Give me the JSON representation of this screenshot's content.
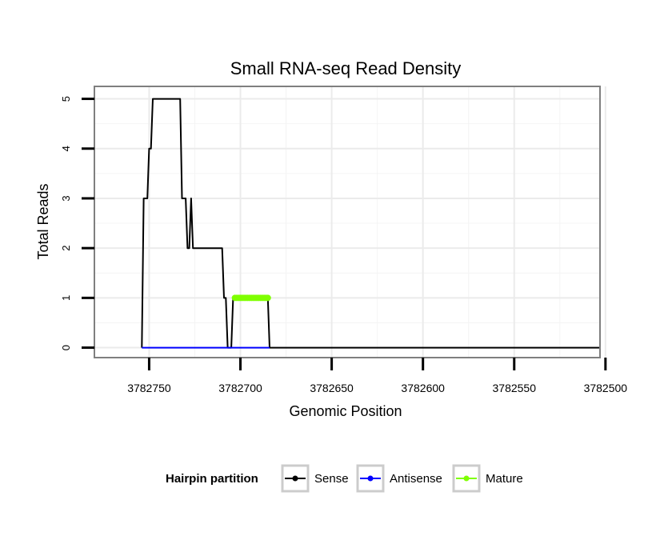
{
  "chart_data": {
    "type": "line",
    "title": "Small RNA-seq Read Density",
    "xlabel": "Genomic Position",
    "ylabel": "Total Reads",
    "x_reversed": true,
    "xlim": [
      3782503,
      3782780
    ],
    "ylim": [
      -0.2,
      5.25
    ],
    "x_ticks": [
      3782750,
      3782700,
      3782650,
      3782600,
      3782550,
      3782500
    ],
    "x_tick_labels": [
      "3782750",
      "3782700",
      "3782650",
      "3782600",
      "3782550",
      "3782500"
    ],
    "y_ticks": [
      0,
      1,
      2,
      3,
      4,
      5
    ],
    "y_tick_labels": [
      "0",
      "1",
      "2",
      "3",
      "4",
      "5"
    ],
    "grid": true,
    "legend": {
      "title": "Hairpin partition",
      "position": "bottom",
      "entries": [
        "Sense",
        "Antisense",
        "Mature"
      ]
    },
    "series": [
      {
        "name": "Sense",
        "color": "#000000",
        "x": [
          3782754,
          3782753,
          3782751,
          3782750,
          3782749,
          3782748,
          3782747,
          3782733,
          3782732,
          3782731,
          3782730,
          3782729,
          3782728,
          3782727,
          3782726,
          3782725,
          3782724,
          3782723,
          3782718,
          3782710,
          3782709,
          3782708,
          3782707,
          3782706,
          3782705,
          3782704,
          3782703,
          3782702,
          3782700,
          3782685,
          3782684,
          3782503
        ],
        "y": [
          0,
          3,
          3,
          4,
          4,
          5,
          5,
          5,
          3,
          3,
          3,
          2,
          2,
          3,
          2,
          2,
          2,
          2,
          2,
          2,
          1,
          1,
          0,
          0,
          0,
          1,
          1,
          1,
          1,
          1,
          0,
          0
        ]
      },
      {
        "name": "Antisense",
        "color": "#0000ff",
        "x": [
          3782754,
          3782684
        ],
        "y": [
          0,
          0
        ]
      },
      {
        "name": "Mature",
        "color": "#7fff00",
        "x": [
          3782703,
          3782702,
          3782701,
          3782700,
          3782699,
          3782698,
          3782697,
          3782696,
          3782695,
          3782694,
          3782693,
          3782692,
          3782691,
          3782690,
          3782689,
          3782688,
          3782687,
          3782686,
          3782685
        ],
        "y": [
          1,
          1,
          1,
          1,
          1,
          1,
          1,
          1,
          1,
          1,
          1,
          1,
          1,
          1,
          1,
          1,
          1,
          1,
          1
        ]
      }
    ]
  }
}
